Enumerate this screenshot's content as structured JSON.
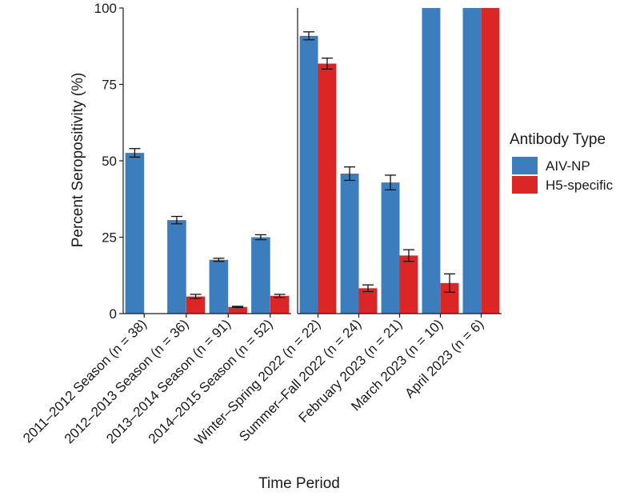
{
  "chart_data": {
    "type": "bar",
    "title": "",
    "xlabel": "Time Period",
    "ylabel": "Percent Seropositivity (%)",
    "ylim": [
      0,
      100
    ],
    "yticks": [
      0,
      25,
      50,
      75,
      100
    ],
    "grid": false,
    "panels": [
      {
        "categories": [
          "2011–2012 Season (n = 38)",
          "2012–2013 Season (n = 36)",
          "2013–2014 Season (n = 91)",
          "2014–2015 Season (n = 52)"
        ]
      },
      {
        "categories": [
          "Winter–Spring 2022 (n = 22)",
          "Summer–Fall 2022 (n = 24)",
          "February 2023 (n = 21)",
          "March 2023 (n = 10)",
          "April 2023 (n = 6)"
        ]
      }
    ],
    "series": [
      {
        "name": "AIV-NP",
        "color": "#3b7dbd",
        "values": [
          52.6,
          30.6,
          17.6,
          25.0,
          90.9,
          45.8,
          42.9,
          100,
          100
        ],
        "error": [
          1.4,
          1.2,
          0.5,
          0.8,
          1.3,
          2.2,
          2.4,
          null,
          null
        ]
      },
      {
        "name": "H5-specific",
        "color": "#dc2626",
        "values": [
          null,
          5.6,
          2.2,
          5.8,
          81.8,
          8.3,
          19.0,
          10.0,
          100
        ],
        "error": [
          null,
          0.7,
          0.2,
          0.5,
          1.8,
          1.1,
          1.9,
          3.0,
          null
        ]
      }
    ],
    "legend": {
      "title": "Antibody Type",
      "position": "right"
    }
  }
}
